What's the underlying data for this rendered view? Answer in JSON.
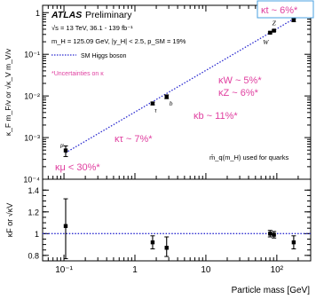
{
  "colors": {
    "accent": "#e040a0",
    "sm_line": "#2a2ad0",
    "data": "#000000",
    "frame": "#000000"
  },
  "chart_data": [
    {
      "type": "scatter",
      "panel": "top",
      "xscale": "log",
      "yscale": "log",
      "xlim": [
        0.05,
        300
      ],
      "ylim": [
        0.0001,
        1.5
      ],
      "ylabel": "κ_F m_F/v or √κ_V m_V/v",
      "x_tick_labels": [
        "10⁻¹",
        "1",
        "10",
        "10²"
      ],
      "y_tick_labels": [
        "10⁻⁴",
        "10⁻³",
        "10⁻²",
        "10⁻¹",
        "1"
      ],
      "title": "ATLAS",
      "title_suffix": "Preliminary",
      "annotations": [
        "√s = 13 TeV, 36.1 - 139 fb⁻¹",
        "m_H = 125.09 GeV, |y_H| < 2.5, p_SM = 19%",
        "*Uncertainties on κ",
        "m̄_q(m_H) used for quarks"
      ],
      "legend": [
        {
          "name": "SM Higgs boson",
          "style": "dotted",
          "placement": "upper-left"
        }
      ],
      "sm_line": {
        "x": [
          0.105,
          173
        ],
        "y": [
          0.00043,
          0.71
        ]
      },
      "points": [
        {
          "label": "μ",
          "x": 0.1057,
          "y": 0.00049,
          "yerr_low": 0.00014,
          "yerr_high": 0.00014
        },
        {
          "label": "τ",
          "x": 1.777,
          "y": 0.0066,
          "yerr_low": 0.0005,
          "yerr_high": 0.0005
        },
        {
          "label": "b",
          "x": 2.8,
          "y": 0.0096,
          "yerr_low": 0.001,
          "yerr_high": 0.001
        },
        {
          "label": "W",
          "x": 80.4,
          "y": 0.33,
          "yerr_low": 0.015,
          "yerr_high": 0.015
        },
        {
          "label": "Z",
          "x": 91.2,
          "y": 0.37,
          "yerr_low": 0.015,
          "yerr_high": 0.015
        },
        {
          "label": "t",
          "x": 173,
          "y": 0.66,
          "yerr_low": 0.05,
          "yerr_high": 0.05
        }
      ],
      "kappa_labels": [
        "κt ~ 6%*",
        "κW ~ 5%*",
        "κZ ~ 6%*",
        "κb ~ 11%*",
        "κτ ~ 7%*",
        "κμ < 30%*"
      ]
    },
    {
      "type": "scatter",
      "panel": "bottom",
      "xscale": "log",
      "xlim": [
        0.05,
        300
      ],
      "ylim": [
        0.75,
        1.5
      ],
      "ylabel": "κF or √κV",
      "xlabel": "Particle mass [GeV]",
      "x_tick_labels": [
        "10⁻¹",
        "1",
        "10",
        "10²"
      ],
      "y_tick_labels": [
        "0.8",
        "1",
        "1.2",
        "1.4"
      ],
      "reference_line": 1.0,
      "points": [
        {
          "label": "μ",
          "x": 0.1057,
          "y": 1.07,
          "yerr_low": 0.3,
          "yerr_high": 0.25
        },
        {
          "label": "τ",
          "x": 1.777,
          "y": 0.92,
          "yerr_low": 0.06,
          "yerr_high": 0.06
        },
        {
          "label": "b",
          "x": 2.8,
          "y": 0.87,
          "yerr_low": 0.08,
          "yerr_high": 0.1
        },
        {
          "label": "W",
          "x": 80.4,
          "y": 1.0,
          "yerr_low": 0.03,
          "yerr_high": 0.03
        },
        {
          "label": "Z",
          "x": 91.2,
          "y": 0.99,
          "yerr_low": 0.03,
          "yerr_high": 0.03
        },
        {
          "label": "t",
          "x": 173,
          "y": 0.92,
          "yerr_low": 0.06,
          "yerr_high": 0.06
        }
      ]
    }
  ]
}
